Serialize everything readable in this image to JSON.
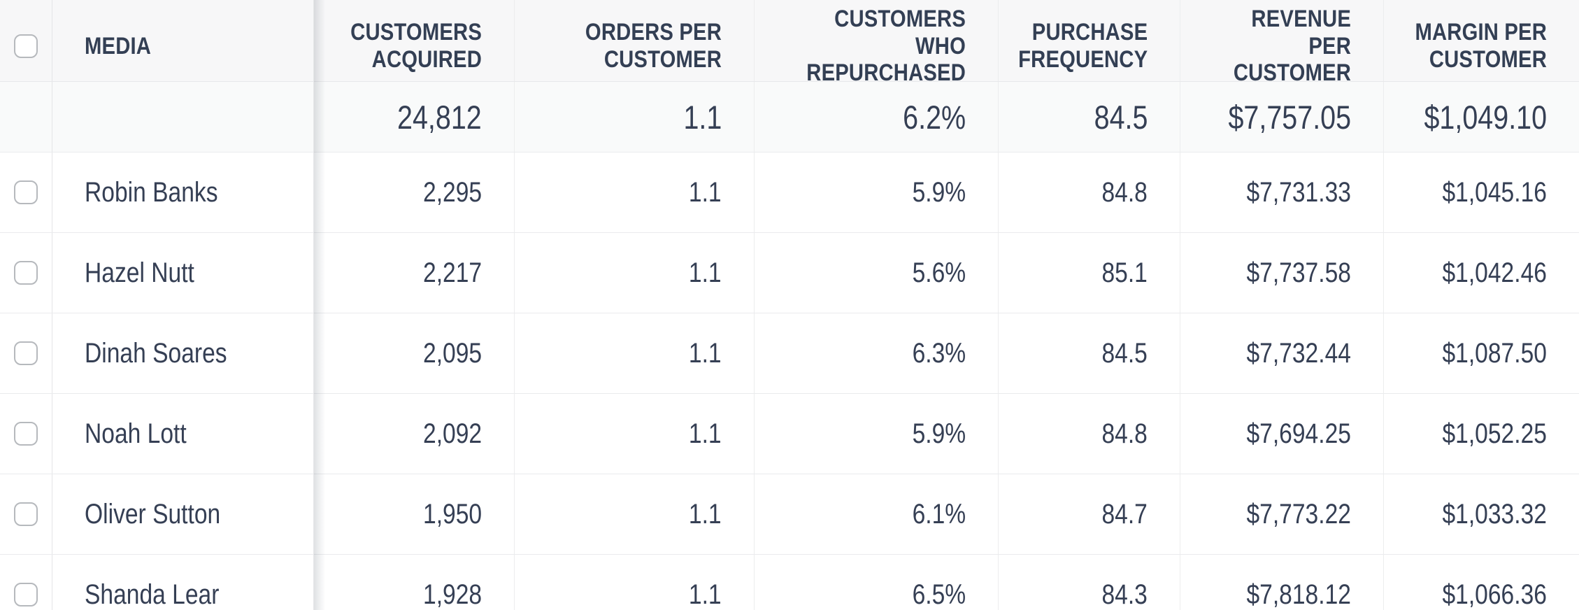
{
  "table": {
    "columns": {
      "media": "MEDIA",
      "customers_acquired": "CUSTOMERS ACQUIRED",
      "orders_per_customer": "ORDERS PER CUSTOMER",
      "customers_who_repurchased": "CUSTOMERS WHO REPURCHASED",
      "purchase_frequency": "PURCHASE FREQUENCY",
      "revenue_per_customer": "REVENUE PER CUSTOMER",
      "margin_per_customer": "MARGIN PER CUSTOMER"
    },
    "totals": {
      "customers_acquired": "24,812",
      "orders_per_customer": "1.1",
      "customers_who_repurchased": "6.2%",
      "purchase_frequency": "84.5",
      "revenue_per_customer": "$7,757.05",
      "margin_per_customer": "$1,049.10"
    },
    "rows": [
      {
        "media": "Robin Banks",
        "customers_acquired": "2,295",
        "orders_per_customer": "1.1",
        "customers_who_repurchased": "5.9%",
        "purchase_frequency": "84.8",
        "revenue_per_customer": "$7,731.33",
        "margin_per_customer": "$1,045.16"
      },
      {
        "media": "Hazel Nutt",
        "customers_acquired": "2,217",
        "orders_per_customer": "1.1",
        "customers_who_repurchased": "5.6%",
        "purchase_frequency": "85.1",
        "revenue_per_customer": "$7,737.58",
        "margin_per_customer": "$1,042.46"
      },
      {
        "media": "Dinah Soares",
        "customers_acquired": "2,095",
        "orders_per_customer": "1.1",
        "customers_who_repurchased": "6.3%",
        "purchase_frequency": "84.5",
        "revenue_per_customer": "$7,732.44",
        "margin_per_customer": "$1,087.50"
      },
      {
        "media": "Noah Lott",
        "customers_acquired": "2,092",
        "orders_per_customer": "1.1",
        "customers_who_repurchased": "5.9%",
        "purchase_frequency": "84.8",
        "revenue_per_customer": "$7,694.25",
        "margin_per_customer": "$1,052.25"
      },
      {
        "media": "Oliver Sutton",
        "customers_acquired": "1,950",
        "orders_per_customer": "1.1",
        "customers_who_repurchased": "6.1%",
        "purchase_frequency": "84.7",
        "revenue_per_customer": "$7,773.22",
        "margin_per_customer": "$1,033.32"
      },
      {
        "media": "Shanda Lear",
        "customers_acquired": "1,928",
        "orders_per_customer": "1.1",
        "customers_who_repurchased": "6.5%",
        "purchase_frequency": "84.3",
        "revenue_per_customer": "$7,818.12",
        "margin_per_customer": "$1,066.36"
      }
    ],
    "colors": {
      "text": "#353F54",
      "header_background": "#F7F7F8",
      "totals_background": "#F9FAFA",
      "row_background": "#FFFFFF",
      "gridline": "#EAEBED",
      "checkbox_border": "#B6B9BD"
    }
  }
}
